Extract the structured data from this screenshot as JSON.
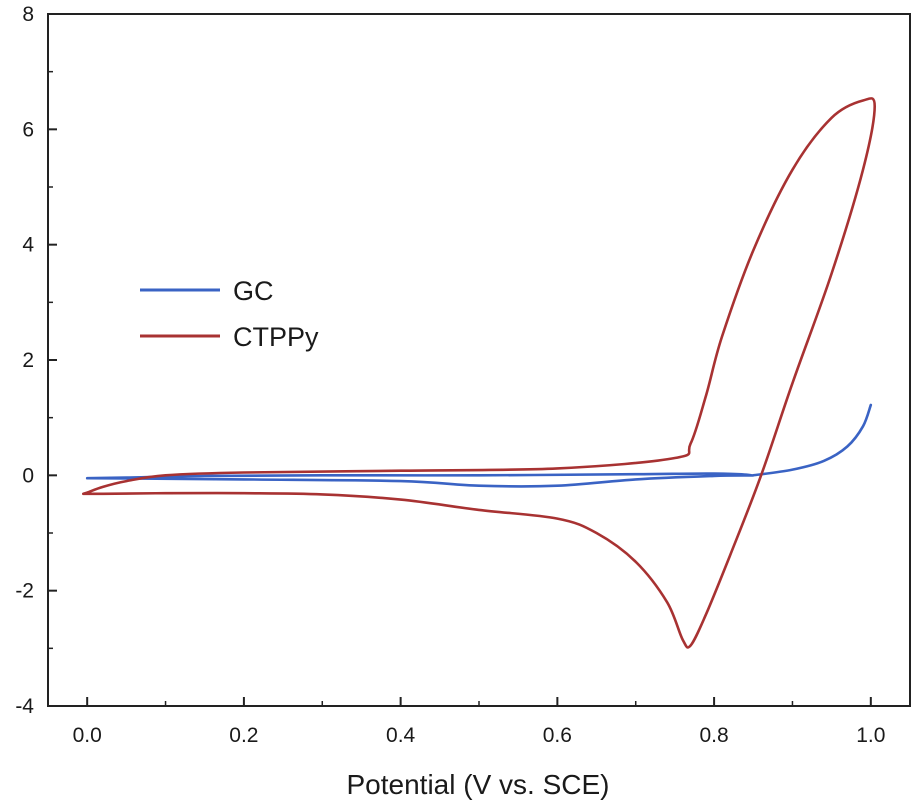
{
  "chart_data": {
    "type": "line",
    "title": "",
    "xlabel": "Potential (V vs. SCE)",
    "ylabel": "",
    "xlim": [
      -0.05,
      1.05
    ],
    "ylim": [
      -4,
      8
    ],
    "x_ticks": [
      0.0,
      0.2,
      0.4,
      0.6,
      0.8,
      1.0
    ],
    "x_tick_labels": [
      "0.0",
      "0.2",
      "0.4",
      "0.6",
      "0.8",
      "1.0"
    ],
    "y_ticks": [
      -4,
      -2,
      0,
      2,
      4,
      6,
      8
    ],
    "y_tick_labels": [
      "-4",
      "-2",
      "0",
      "2",
      "4",
      "6",
      "8"
    ],
    "grid": false,
    "legend_position": "left",
    "series": [
      {
        "name": "GC",
        "color": "#3a63c4",
        "points": [
          [
            0.0,
            -0.05
          ],
          [
            0.2,
            -0.07
          ],
          [
            0.4,
            -0.1
          ],
          [
            0.5,
            -0.18
          ],
          [
            0.6,
            -0.18
          ],
          [
            0.7,
            -0.07
          ],
          [
            0.8,
            -0.01
          ],
          [
            0.85,
            0.0
          ],
          [
            0.8,
            0.03
          ],
          [
            0.7,
            0.02
          ],
          [
            0.5,
            0.0
          ],
          [
            0.3,
            0.0
          ],
          [
            0.15,
            -0.01
          ],
          [
            0.05,
            -0.04
          ],
          [
            0.0,
            -0.05
          ]
        ],
        "tail": [
          [
            0.85,
            0.0
          ],
          [
            0.9,
            0.1
          ],
          [
            0.94,
            0.25
          ],
          [
            0.97,
            0.5
          ],
          [
            0.99,
            0.85
          ],
          [
            1.0,
            1.22
          ]
        ]
      },
      {
        "name": "CTPPy",
        "color": "#a83232",
        "points": [
          [
            -0.005,
            -0.32
          ],
          [
            0.02,
            -0.32
          ],
          [
            0.1,
            -0.31
          ],
          [
            0.2,
            -0.31
          ],
          [
            0.3,
            -0.33
          ],
          [
            0.4,
            -0.42
          ],
          [
            0.5,
            -0.6
          ],
          [
            0.6,
            -0.75
          ],
          [
            0.65,
            -1.0
          ],
          [
            0.7,
            -1.5
          ],
          [
            0.74,
            -2.2
          ],
          [
            0.76,
            -2.85
          ],
          [
            0.77,
            -2.95
          ],
          [
            0.79,
            -2.4
          ],
          [
            0.82,
            -1.4
          ],
          [
            0.86,
            0.0
          ],
          [
            0.9,
            1.6
          ],
          [
            0.95,
            3.5
          ],
          [
            0.99,
            5.3
          ],
          [
            1.005,
            6.4
          ],
          [
            0.99,
            6.5
          ],
          [
            0.95,
            6.2
          ],
          [
            0.9,
            5.3
          ],
          [
            0.85,
            3.9
          ],
          [
            0.81,
            2.4
          ],
          [
            0.79,
            1.4
          ],
          [
            0.77,
            0.55
          ],
          [
            0.75,
            0.3
          ],
          [
            0.6,
            0.12
          ],
          [
            0.4,
            0.08
          ],
          [
            0.2,
            0.05
          ],
          [
            0.1,
            0.0
          ],
          [
            0.05,
            -0.1
          ],
          [
            0.02,
            -0.2
          ],
          [
            0.0,
            -0.3
          ],
          [
            -0.005,
            -0.32
          ]
        ]
      }
    ]
  }
}
